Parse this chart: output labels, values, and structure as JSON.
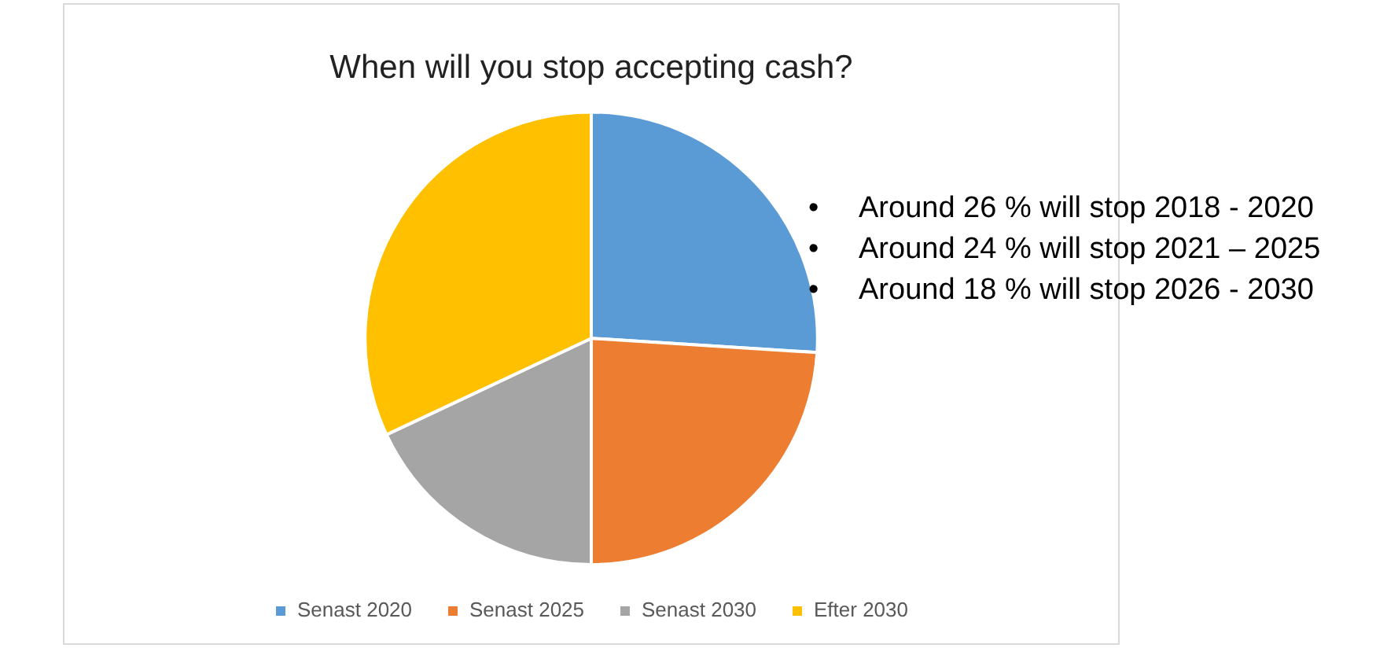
{
  "chart_data": {
    "type": "pie",
    "title": "When will you stop accepting cash?",
    "categories": [
      "Senast 2020",
      "Senast 2025",
      "Senast 2030",
      "Efter 2030"
    ],
    "values": [
      26,
      24,
      18,
      32
    ],
    "colors": [
      "#5b9bd5",
      "#ed7d31",
      "#a5a5a5",
      "#ffc000"
    ],
    "legend": "bottom",
    "annotations": [
      "•     Around 26 % will stop 2018 - 2020",
      "•     Around 24 % will stop 2021 – 2025",
      "•     Around 18 % will stop 2026 - 2030"
    ]
  }
}
